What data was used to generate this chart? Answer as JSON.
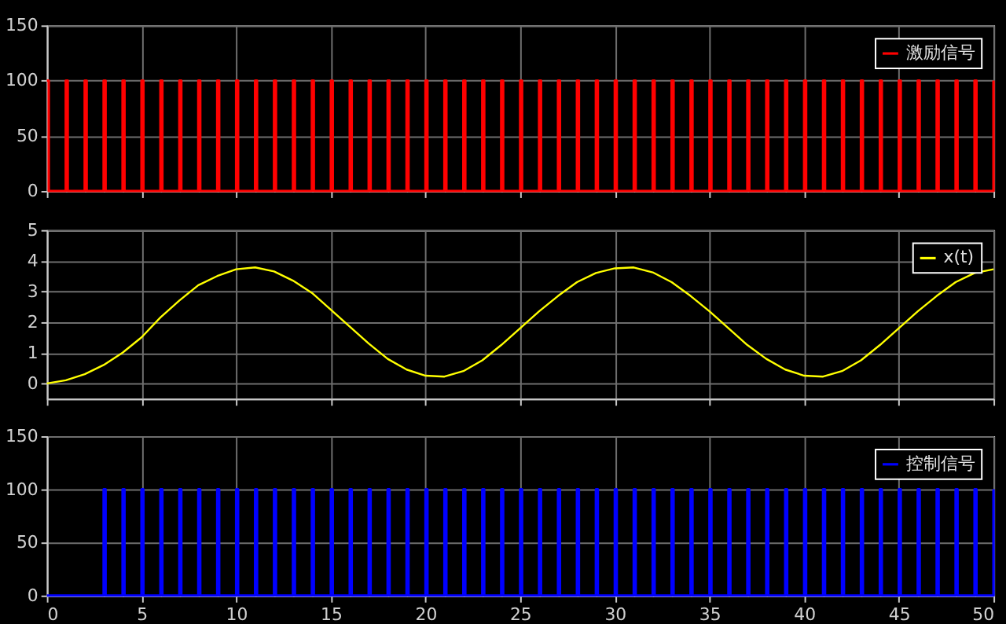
{
  "chart_data": [
    {
      "type": "step",
      "xlim": [
        0,
        50
      ],
      "xticks": [
        0,
        5,
        10,
        15,
        20,
        25,
        30,
        35,
        40,
        45,
        50
      ],
      "ylim": [
        0,
        150
      ],
      "yticks": [
        0,
        50,
        100,
        150
      ],
      "grid": true,
      "legend": "top right",
      "tick_labels": "y",
      "series": [
        {
          "name": "激励信号",
          "color": "#ff0000",
          "x": [
            0,
            0.1,
            1,
            1.1,
            2,
            2.1,
            3,
            3.1,
            4,
            4.1,
            5,
            5.1,
            6,
            6.1,
            7,
            7.1,
            8,
            8.1,
            9,
            9.1,
            10,
            10.1,
            11,
            11.1,
            12,
            12.1,
            13,
            13.1,
            14,
            14.1,
            15,
            15.1,
            16,
            16.1,
            17,
            17.1,
            18,
            18.1,
            19,
            19.1,
            20,
            20.1,
            21,
            21.1,
            22,
            22.1,
            23,
            23.1,
            24,
            24.1,
            25,
            25.1,
            26,
            26.1,
            27,
            27.1,
            28,
            28.1,
            29,
            29.1,
            30,
            30.1,
            31,
            31.1,
            32,
            32.1,
            33,
            33.1,
            34,
            34.1,
            35,
            35.1,
            36,
            36.1,
            37,
            37.1,
            38,
            38.1,
            39,
            39.1,
            40,
            40.1,
            41,
            41.1,
            42,
            42.1,
            43,
            43.1,
            44,
            44.1,
            45,
            45.1,
            46,
            46.1,
            47,
            47.1,
            48,
            48.1,
            49,
            49.1,
            50
          ],
          "values": [
            100,
            0,
            100,
            0,
            100,
            0,
            100,
            0,
            100,
            0,
            100,
            0,
            100,
            0,
            100,
            0,
            100,
            0,
            100,
            0,
            100,
            0,
            100,
            0,
            100,
            0,
            100,
            0,
            100,
            0,
            100,
            0,
            100,
            0,
            100,
            0,
            100,
            0,
            100,
            0,
            100,
            0,
            100,
            0,
            100,
            0,
            100,
            0,
            100,
            0,
            100,
            0,
            100,
            0,
            100,
            0,
            100,
            0,
            100,
            0,
            100,
            0,
            100,
            0,
            100,
            0,
            100,
            0,
            100,
            0,
            100,
            0,
            100,
            0,
            100,
            0,
            100,
            0,
            100,
            0,
            100,
            0,
            100,
            0,
            100,
            0,
            100,
            0,
            100,
            0,
            100,
            0,
            100,
            0,
            100,
            0,
            100,
            0,
            100,
            0,
            100
          ]
        }
      ]
    },
    {
      "type": "line",
      "xlim": [
        0,
        50
      ],
      "xticks": [
        0,
        5,
        10,
        15,
        20,
        25,
        30,
        35,
        40,
        45,
        50
      ],
      "ylim": [
        -0.5,
        5
      ],
      "yticks": [
        0,
        1,
        2,
        3,
        4,
        5
      ],
      "grid": true,
      "legend": "top right",
      "tick_labels": "y",
      "series": [
        {
          "name": "x(t)",
          "color": "#ffff00",
          "x": [
            0,
            1,
            2,
            3,
            4,
            5,
            6,
            7,
            8,
            9,
            10,
            11,
            12,
            13,
            14,
            15,
            16,
            17,
            18,
            19,
            20,
            21,
            22,
            23,
            24,
            25,
            26,
            27,
            28,
            29,
            30,
            31,
            32,
            33,
            34,
            35,
            36,
            37,
            38,
            39,
            40,
            41,
            42,
            43,
            44,
            45,
            46,
            47,
            48,
            49,
            50
          ],
          "values": [
            0,
            0.1,
            0.3,
            0.6,
            1.0,
            1.5,
            2.15,
            2.7,
            3.2,
            3.5,
            3.72,
            3.78,
            3.65,
            3.35,
            2.95,
            2.4,
            1.85,
            1.3,
            0.8,
            0.45,
            0.25,
            0.22,
            0.4,
            0.75,
            1.25,
            1.8,
            2.35,
            2.85,
            3.3,
            3.6,
            3.75,
            3.78,
            3.62,
            3.3,
            2.85,
            2.35,
            1.8,
            1.25,
            0.8,
            0.45,
            0.25,
            0.22,
            0.4,
            0.75,
            1.25,
            1.8,
            2.35,
            2.85,
            3.3,
            3.6,
            3.72
          ]
        }
      ]
    },
    {
      "type": "step",
      "xlim": [
        0,
        50
      ],
      "xticks": [
        0,
        5,
        10,
        15,
        20,
        25,
        30,
        35,
        40,
        45,
        50
      ],
      "ylim": [
        0,
        150
      ],
      "yticks": [
        0,
        50,
        100,
        150
      ],
      "grid": true,
      "legend": "top right",
      "series": [
        {
          "name": "控制信号",
          "color": "#0000ff",
          "x": [
            0,
            3,
            3.1,
            4,
            4.1,
            5,
            5.1,
            6,
            6.1,
            7,
            7.1,
            8,
            8.1,
            9,
            9.1,
            10,
            10.1,
            11,
            11.1,
            12,
            12.1,
            13,
            13.1,
            14,
            14.1,
            15,
            15.1,
            16,
            16.1,
            17,
            17.1,
            18,
            18.1,
            19,
            19.1,
            20,
            20.1,
            21,
            21.1,
            22,
            22.1,
            23,
            23.1,
            24,
            24.1,
            25,
            25.1,
            26,
            26.1,
            27,
            27.1,
            28,
            28.1,
            29,
            29.1,
            30,
            30.1,
            31,
            31.1,
            32,
            32.1,
            33,
            33.1,
            34,
            34.1,
            35,
            35.1,
            36,
            36.1,
            37,
            37.1,
            38,
            38.1,
            39,
            39.1,
            40,
            40.1,
            41,
            41.1,
            42,
            42.1,
            43,
            43.1,
            44,
            44.1,
            45,
            45.1,
            46,
            46.1,
            47,
            47.1,
            48,
            48.1,
            49,
            49.1,
            50
          ],
          "values": [
            0,
            100,
            0,
            100,
            0,
            100,
            0,
            100,
            0,
            100,
            0,
            100,
            0,
            100,
            0,
            100,
            0,
            100,
            0,
            100,
            0,
            100,
            0,
            100,
            0,
            100,
            0,
            100,
            0,
            100,
            0,
            100,
            0,
            100,
            0,
            100,
            0,
            100,
            0,
            100,
            0,
            100,
            0,
            100,
            0,
            100,
            0,
            100,
            0,
            100,
            0,
            100,
            0,
            100,
            0,
            100,
            0,
            100,
            0,
            100,
            0,
            100,
            0,
            100,
            0,
            100,
            0,
            100,
            0,
            100,
            0,
            100,
            0,
            100,
            0,
            100,
            0,
            100,
            0,
            100,
            0,
            100,
            0,
            100,
            0,
            100,
            0,
            100,
            0,
            100,
            0,
            100,
            0,
            100,
            0,
            100
          ]
        }
      ]
    }
  ]
}
